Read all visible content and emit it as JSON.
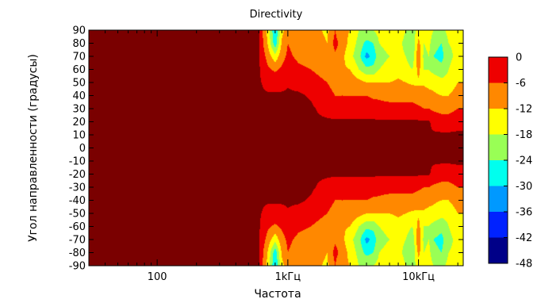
{
  "chart_data": {
    "type": "heatmap",
    "title": "Directivity",
    "xlabel": "Частота",
    "ylabel": "Угол направленности (градусы)",
    "x_scale": "log",
    "xlim": [
      30,
      22000
    ],
    "ylim": [
      -90,
      90
    ],
    "x_ticks": [
      {
        "value": 100,
        "label": "100"
      },
      {
        "value": 1000,
        "label": "1kГц"
      },
      {
        "value": 10000,
        "label": "10kГц"
      }
    ],
    "y_ticks": [
      90,
      80,
      70,
      60,
      50,
      40,
      30,
      20,
      10,
      0,
      -10,
      -20,
      -30,
      -40,
      -50,
      -60,
      -70,
      -80,
      -90
    ],
    "y_tick_labels": [
      "90",
      "80",
      "70",
      "60",
      "50",
      "40",
      "30",
      "20",
      "10",
      "0",
      "-10",
      "-20",
      "-30",
      "-40",
      "-50",
      "-60",
      "-70",
      "-80",
      "-90"
    ],
    "colorbar": {
      "ticks": [
        0,
        -6,
        -12,
        -18,
        -24,
        -30,
        -36,
        -42,
        -48
      ],
      "labels": [
        "0",
        "-6",
        "-12",
        "-18",
        "-24",
        "-30",
        "-36",
        "-42",
        "-48"
      ],
      "colors": [
        "#ee0000",
        "#ff8800",
        "#ffff00",
        "#99ff55",
        "#00ffee",
        "#0099ff",
        "#0022ff",
        "#000088"
      ],
      "max_color": "#7a0000"
    },
    "frequencies": [
      30,
      500,
      600,
      700,
      800,
      900,
      1000,
      1200,
      1500,
      2000,
      2300,
      2500,
      3000,
      3500,
      4000,
      4500,
      5000,
      6000,
      7000,
      8000,
      9000,
      10000,
      11000,
      12000,
      13000,
      15000,
      17000,
      20000
    ],
    "angles": [
      0,
      10,
      20,
      30,
      40,
      50,
      60,
      70,
      80,
      90
    ],
    "levels_db": [
      [
        0,
        0,
        0,
        0,
        0,
        0,
        0,
        0,
        0,
        0
      ],
      [
        0,
        0,
        0,
        0,
        0,
        0,
        0,
        0,
        0,
        0
      ],
      [
        0,
        0,
        0,
        0,
        0,
        0,
        0,
        0,
        0,
        0
      ],
      [
        0,
        0,
        0,
        0,
        0,
        -2,
        -5,
        -8,
        -12,
        -14
      ],
      [
        0,
        0,
        0,
        0,
        0,
        -2,
        -7,
        -16,
        -28,
        -30
      ],
      [
        0,
        0,
        0,
        0,
        0,
        -2,
        -5,
        -8,
        -11,
        -14
      ],
      [
        0,
        0,
        0,
        0,
        0,
        -1,
        -3,
        -5,
        -6,
        -8
      ],
      [
        0,
        0,
        0,
        0,
        0,
        -2,
        -5,
        -7,
        -8,
        -9
      ],
      [
        0,
        0,
        0,
        0,
        -1,
        -3,
        -6,
        -8,
        -9,
        -10
      ],
      [
        0,
        0,
        0,
        -2,
        -4,
        -6,
        -9,
        -11,
        -12,
        -13
      ],
      [
        0,
        0,
        0,
        -3,
        -6,
        -8,
        -10,
        -7,
        -4,
        -6
      ],
      [
        0,
        0,
        0,
        -3,
        -6,
        -8,
        -11,
        -9,
        -7,
        -10
      ],
      [
        0,
        0,
        0,
        -3,
        -6,
        -8,
        -12,
        -16,
        -14,
        -12
      ],
      [
        0,
        0,
        0,
        -3,
        -6,
        -10,
        -18,
        -22,
        -20,
        -18
      ],
      [
        0,
        0,
        0,
        -3,
        -6,
        -12,
        -22,
        -32,
        -26,
        -18
      ],
      [
        0,
        0,
        0,
        -3,
        -7,
        -12,
        -22,
        -28,
        -24,
        -18
      ],
      [
        0,
        0,
        0,
        -4,
        -7,
        -12,
        -18,
        -20,
        -18,
        -16
      ],
      [
        0,
        0,
        0,
        -4,
        -8,
        -12,
        -16,
        -18,
        -16,
        -14
      ],
      [
        0,
        0,
        0,
        -4,
        -8,
        -11,
        -14,
        -16,
        -16,
        -14
      ],
      [
        0,
        0,
        0,
        -4,
        -8,
        -12,
        -16,
        -18,
        -20,
        -18
      ],
      [
        0,
        0,
        0,
        -4,
        -8,
        -13,
        -18,
        -22,
        -24,
        -20
      ],
      [
        0,
        0,
        0,
        -5,
        -9,
        -13,
        -10,
        -6,
        -10,
        -16
      ],
      [
        0,
        0,
        0,
        -6,
        -9,
        -13,
        -18,
        -20,
        -18,
        -16
      ],
      [
        0,
        0,
        0,
        -6,
        -10,
        -14,
        -18,
        -18,
        -16,
        -14
      ],
      [
        0,
        0,
        -2,
        -7,
        -11,
        -14,
        -20,
        -24,
        -22,
        -18
      ],
      [
        0,
        0,
        -3,
        -8,
        -12,
        -16,
        -22,
        -26,
        -24,
        -20
      ],
      [
        0,
        0,
        -3,
        -8,
        -12,
        -16,
        -18,
        -20,
        -18,
        -16
      ],
      [
        0,
        0,
        -2,
        -6,
        -9,
        -12,
        -14,
        -16,
        -16,
        -14
      ]
    ]
  }
}
